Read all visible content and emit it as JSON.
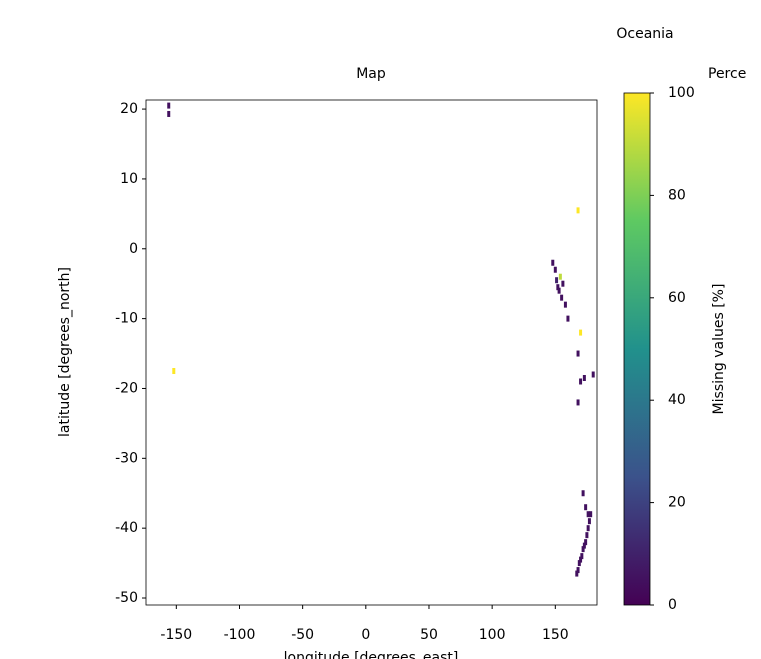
{
  "chart_data": {
    "type": "map",
    "suptitle": "Oceania",
    "title": "Map",
    "colorbar_title": "Perce",
    "xlabel": "longitude [degrees_east]",
    "ylabel": "latitude [degrees_north]",
    "colorbar_label": "Missing values [%]",
    "xlim": [
      -174,
      183
    ],
    "xticks": [
      -150,
      -100,
      -50,
      0,
      50,
      100,
      150
    ],
    "ylim": [
      -51,
      21.3
    ],
    "yticks": [
      20,
      10,
      0,
      -10,
      -20,
      -30,
      -40,
      -50
    ],
    "clim": [
      0,
      100
    ],
    "cticks": [
      0,
      20,
      40,
      60,
      80,
      100
    ],
    "colormap": "viridis",
    "lon": [
      -156,
      -156,
      -152,
      148,
      150,
      151,
      152,
      153,
      154,
      155,
      156,
      158,
      160,
      168,
      170,
      168,
      170,
      168,
      173,
      180,
      172,
      174,
      176,
      177,
      178,
      176,
      175,
      174,
      173,
      172,
      171,
      170,
      169,
      168,
      167
    ],
    "lat": [
      20.5,
      19.3,
      -17.5,
      -2,
      -3,
      -4.5,
      -5.5,
      -6,
      -4,
      -7,
      -5,
      -8,
      -10,
      5.5,
      -12,
      -15,
      -19,
      -22,
      -18.5,
      -18,
      -35,
      -37,
      -38,
      -39,
      -38,
      -40,
      -41,
      -42,
      -42.5,
      -43,
      -44,
      -44.5,
      -45,
      -46,
      -46.5
    ],
    "values": [
      5,
      5,
      100,
      5,
      5,
      10,
      5,
      5,
      90,
      5,
      5,
      5,
      5,
      100,
      100,
      5,
      5,
      5,
      5,
      5,
      5,
      5,
      5,
      5,
      5,
      5,
      5,
      5,
      5,
      5,
      5,
      5,
      5,
      5,
      5
    ]
  }
}
